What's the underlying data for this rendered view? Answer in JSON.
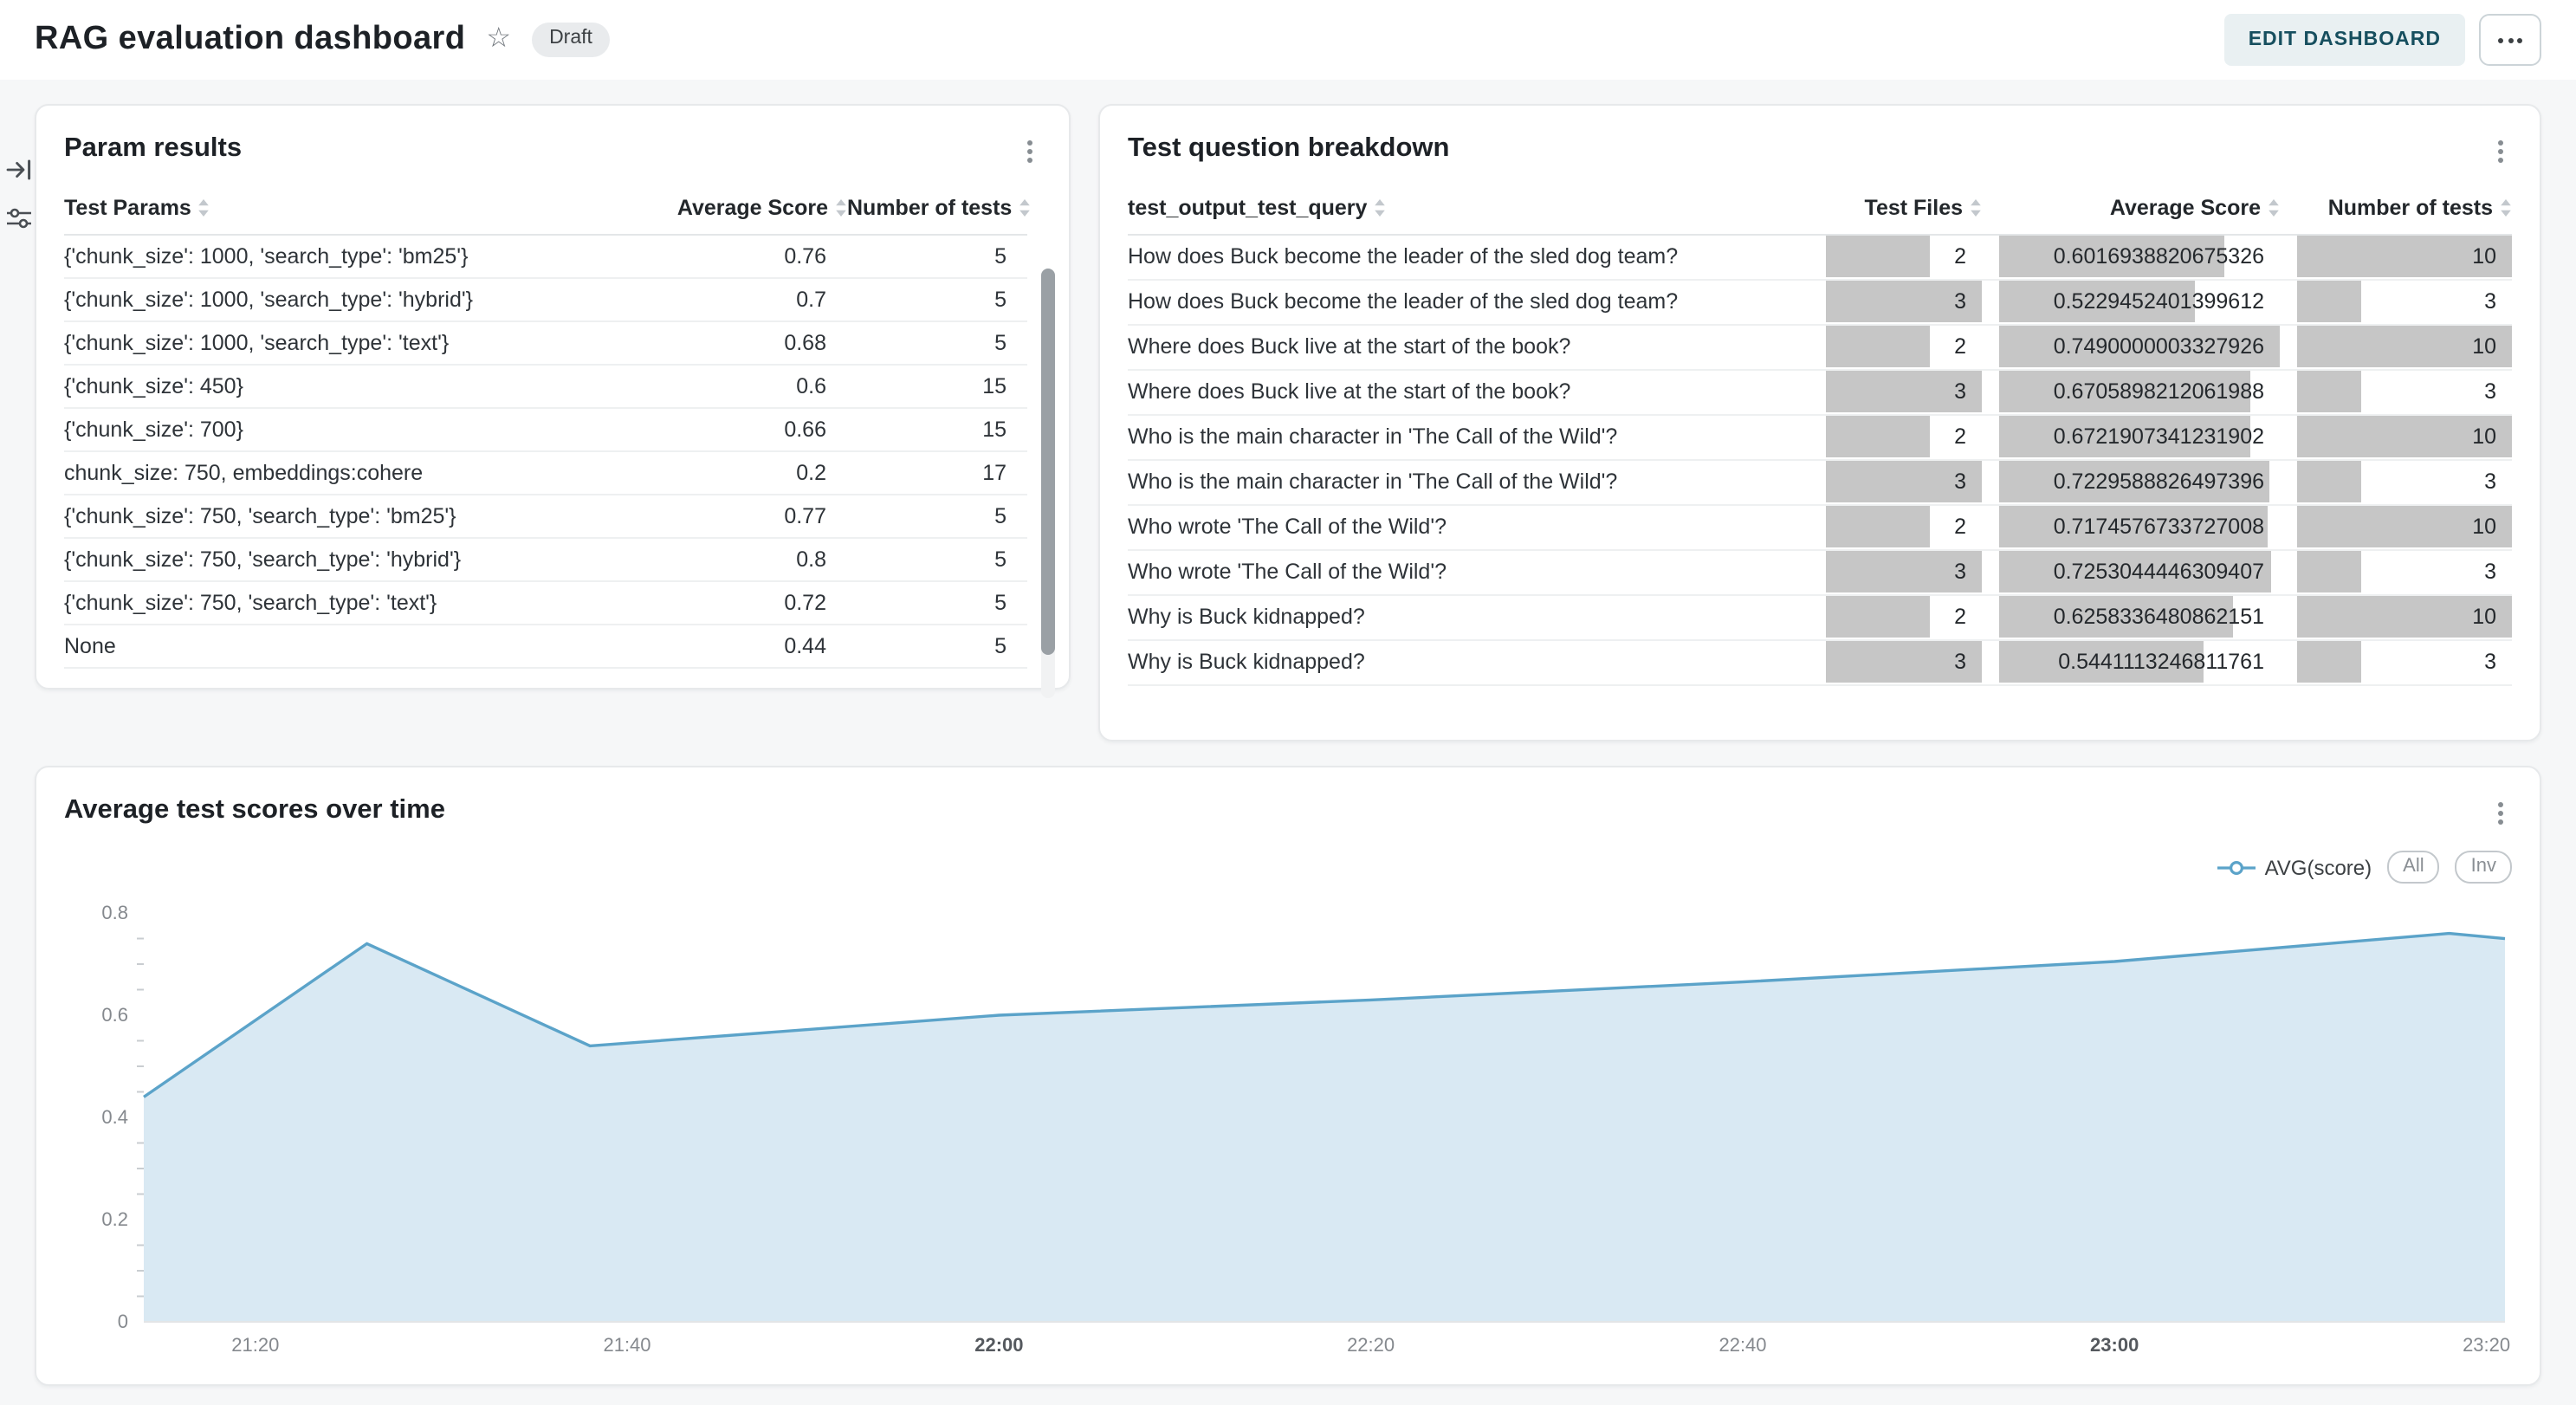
{
  "header": {
    "title": "RAG evaluation dashboard",
    "status_badge": "Draft",
    "edit_button": "EDIT DASHBOARD"
  },
  "sidebar": {
    "icons": [
      "collapse-panel-icon",
      "filter-sliders-icon"
    ]
  },
  "param_results": {
    "title": "Param results",
    "columns": [
      "Test Params",
      "Average Score",
      "Number of tests"
    ],
    "rows": [
      {
        "params": "{'chunk_size': 1000, 'search_type': 'bm25'}",
        "avg_score": "0.76",
        "num_tests": "5"
      },
      {
        "params": "{'chunk_size': 1000, 'search_type': 'hybrid'}",
        "avg_score": "0.7",
        "num_tests": "5"
      },
      {
        "params": "{'chunk_size': 1000, 'search_type': 'text'}",
        "avg_score": "0.68",
        "num_tests": "5"
      },
      {
        "params": "{'chunk_size': 450}",
        "avg_score": "0.6",
        "num_tests": "15"
      },
      {
        "params": "{'chunk_size': 700}",
        "avg_score": "0.66",
        "num_tests": "15"
      },
      {
        "params": "chunk_size: 750, embeddings:cohere",
        "avg_score": "0.2",
        "num_tests": "17"
      },
      {
        "params": "{'chunk_size': 750, 'search_type': 'bm25'}",
        "avg_score": "0.77",
        "num_tests": "5"
      },
      {
        "params": "{'chunk_size': 750, 'search_type': 'hybrid'}",
        "avg_score": "0.8",
        "num_tests": "5"
      },
      {
        "params": "{'chunk_size': 750, 'search_type': 'text'}",
        "avg_score": "0.72",
        "num_tests": "5"
      },
      {
        "params": "None",
        "avg_score": "0.44",
        "num_tests": "5"
      }
    ]
  },
  "question_breakdown": {
    "title": "Test question breakdown",
    "columns": [
      "test_output_test_query",
      "Test Files",
      "Average Score",
      "Number of tests"
    ],
    "bar_max": {
      "files": 3,
      "score": 0.749,
      "tests": 10
    },
    "rows": [
      {
        "query": "How does Buck become the leader of the sled dog team?",
        "files": "2",
        "score": "0.6016938820675326",
        "tests": "10"
      },
      {
        "query": "How does Buck become the leader of the sled dog team?",
        "files": "3",
        "score": "0.5229452401399612",
        "tests": "3"
      },
      {
        "query": "Where does Buck live at the start of the book?",
        "files": "2",
        "score": "0.7490000003327926",
        "tests": "10"
      },
      {
        "query": "Where does Buck live at the start of the book?",
        "files": "3",
        "score": "0.6705898212061988",
        "tests": "3"
      },
      {
        "query": "Who is the main character in 'The Call of the Wild'?",
        "files": "2",
        "score": "0.6721907341231902",
        "tests": "10"
      },
      {
        "query": "Who is the main character in 'The Call of the Wild'?",
        "files": "3",
        "score": "0.7229588826497396",
        "tests": "3"
      },
      {
        "query": "Who wrote 'The Call of the Wild'?",
        "files": "2",
        "score": "0.7174576733727008",
        "tests": "10"
      },
      {
        "query": "Who wrote 'The Call of the Wild'?",
        "files": "3",
        "score": "0.7253044446309407",
        "tests": "3"
      },
      {
        "query": "Why is Buck kidnapped?",
        "files": "2",
        "score": "0.6258336480862151",
        "tests": "10"
      },
      {
        "query": "Why is Buck kidnapped?",
        "files": "3",
        "score": "0.5441113246811761",
        "tests": "3"
      }
    ]
  },
  "chart_card": {
    "title": "Average test scores over time",
    "legend": {
      "series_label": "AVG(score)",
      "buttons": [
        "All",
        "Inv"
      ]
    }
  },
  "chart_data": {
    "type": "area",
    "title": "Average test scores over time",
    "x_unit": "minutes since 21:00",
    "series": [
      {
        "name": "AVG(score)",
        "points": [
          {
            "x": 14,
            "y": 0.44
          },
          {
            "x": 26,
            "y": 0.74
          },
          {
            "x": 38,
            "y": 0.54
          },
          {
            "x": 60,
            "y": 0.6
          },
          {
            "x": 80,
            "y": 0.63
          },
          {
            "x": 100,
            "y": 0.665
          },
          {
            "x": 120,
            "y": 0.705
          },
          {
            "x": 138,
            "y": 0.76
          },
          {
            "x": 141,
            "y": 0.75
          }
        ]
      }
    ],
    "xlim": [
      14,
      141
    ],
    "ylim": [
      0,
      0.8
    ],
    "y_ticks": [
      0,
      0.2,
      0.4,
      0.6,
      0.8
    ],
    "y_minor_step": 0.05,
    "x_ticks": [
      {
        "x": 20,
        "label": "21:20",
        "bold": false
      },
      {
        "x": 40,
        "label": "21:40",
        "bold": false
      },
      {
        "x": 60,
        "label": "22:00",
        "bold": true
      },
      {
        "x": 80,
        "label": "22:20",
        "bold": false
      },
      {
        "x": 100,
        "label": "22:40",
        "bold": false
      },
      {
        "x": 120,
        "label": "23:00",
        "bold": true
      },
      {
        "x": 140,
        "label": "23:20",
        "bold": false
      }
    ],
    "grid": false,
    "legend_position": "top-right",
    "line_color": "#5ba3c9",
    "area_color": "#d9e9f3"
  },
  "colors": {
    "page_bg": "#f6f7f8",
    "accent_teal": "#174f5f",
    "chart_line": "#5ba3c9",
    "chart_area": "#d9e9f3",
    "data_bar_gray": "#c6c6c6"
  }
}
